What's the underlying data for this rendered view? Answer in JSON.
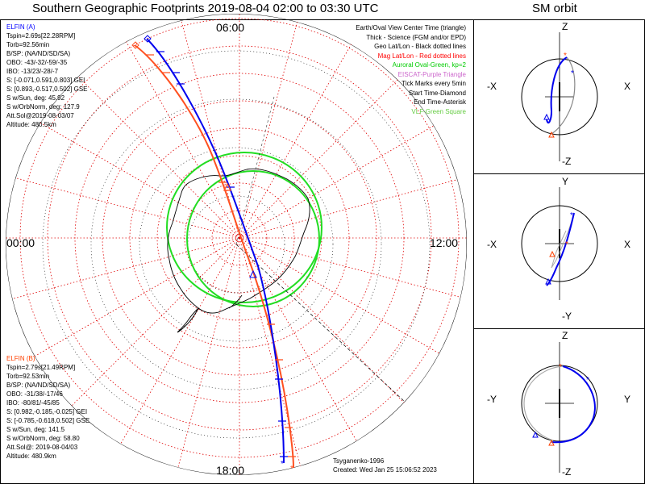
{
  "header": {
    "title": "Southern Geographic Footprints 2019-08-04 02:00 to 03:30 UTC",
    "right_title": "SM orbit"
  },
  "map": {
    "mlt_top": "06:00",
    "mlt_left": "00:00",
    "mlt_right": "12:00",
    "mlt_bottom": "18:00"
  },
  "elfin_a": {
    "name": "ELFIN (A)",
    "color": "#0000ff",
    "lines": [
      "Tspin=2.69s[22.28RPM]",
      "Torb=92.56min",
      "B/SP: (NA/ND/SD/SA)",
      "OBO: -43/-32/-59/-35",
      "IBO: -13/23/-28/-7",
      "S: [-0.071,0.591,0.803] GEI",
      "S: [0.893,-0.517,0.502] GSE",
      "S w/Sun, deg: 45.92",
      "S w/OrbNorm, deg: 127.9",
      "Att.Sol@2019-08-03/07",
      "Altitude: 480.5km"
    ]
  },
  "elfin_b": {
    "name": "ELFIN (B)",
    "color": "#ff4000",
    "lines": [
      "Tspin=2.79s[21.49RPM]",
      "Torb=92.53min",
      "B/SP: (NA/ND/SD/SA)",
      "OBO: -31/38/-17/46",
      "IBO: -80/81/-45/85",
      "S: [0.982,-0.185,-0.025] GEI",
      "S: [-0.785,-0.618,0.502] GSE",
      "S w/Sun, deg: 141.5",
      "S w/OrbNorm, deg: 58.80",
      "Att.Sol@: 2019-08-04/03",
      "Altitude: 480.9km"
    ]
  },
  "legend": [
    {
      "text": "Earth/Oval View Center Time (triangle)",
      "color": "#000000"
    },
    {
      "text": "Thick - Science (FGM and/or EPD)",
      "color": "#000000"
    },
    {
      "text": "Geo Lat/Lon - Black dotted lines",
      "color": "#000000"
    },
    {
      "text": "Mag Lat/Lon - Red dotted lines",
      "color": "#ff0000"
    },
    {
      "text": "Auroral Oval-Green, kp=2",
      "color": "#00cc00"
    },
    {
      "text": "EISCAT-Purple Triangle",
      "color": "#cc66cc"
    },
    {
      "text": "Tick Marks every 5min",
      "color": "#000000"
    },
    {
      "text": "Start Time-Diamond",
      "color": "#000000"
    },
    {
      "text": "End Time-Asterisk",
      "color": "#000000"
    },
    {
      "text": "VLF-Green Square",
      "color": "#66cc44"
    }
  ],
  "footer": {
    "model": "Tsyganenko-1996",
    "created": "Created: Wed Jan 25 15:06:52 2023"
  },
  "sm_panels": [
    {
      "top": "Z",
      "bottom": "-Z",
      "left": "-X",
      "right": "X"
    },
    {
      "top": "Y",
      "bottom": "-Y",
      "left": "-X",
      "right": "X"
    },
    {
      "top": "Z",
      "bottom": "-Z",
      "left": "-Y",
      "right": "Y"
    }
  ]
}
